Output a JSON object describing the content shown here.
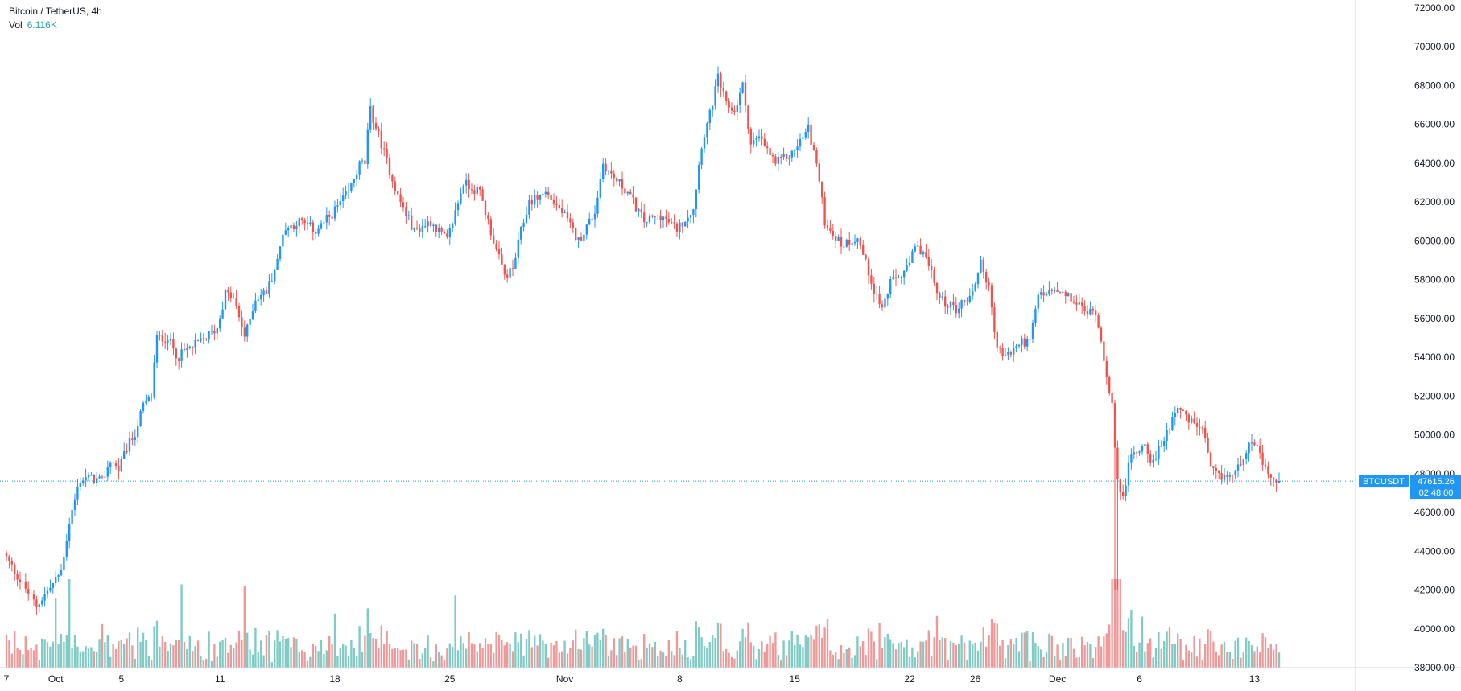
{
  "header": {
    "symbol_title": "Bitcoin / TetherUS, 4h",
    "vol_label": "Vol",
    "vol_value": "6.116K"
  },
  "price_tag": {
    "symbol": "BTCUSDT",
    "price": "47615.26",
    "countdown": "02:48:00"
  },
  "colors": {
    "up": "#2196f3",
    "down": "#ef5350",
    "vol_up": "#80cbc4",
    "vol_down": "#ef9a9a",
    "tag_bg": "#2196f3"
  },
  "chart_data": {
    "type": "candlestick",
    "title": "Bitcoin / TetherUS, 4h",
    "timeframe": "4h",
    "ylim": [
      38000,
      72000
    ],
    "y_ticks": [
      "38000.00",
      "40000.00",
      "42000.00",
      "44000.00",
      "46000.00",
      "48000.00",
      "50000.00",
      "52000.00",
      "54000.00",
      "56000.00",
      "58000.00",
      "60000.00",
      "62000.00",
      "64000.00",
      "66000.00",
      "68000.00",
      "70000.00",
      "72000.00"
    ],
    "x_ticks": [
      {
        "label": "7",
        "day": 0
      },
      {
        "label": "Oct",
        "day": 3
      },
      {
        "label": "5",
        "day": 7
      },
      {
        "label": "11",
        "day": 13
      },
      {
        "label": "18",
        "day": 20
      },
      {
        "label": "25",
        "day": 27
      },
      {
        "label": "Nov",
        "day": 34
      },
      {
        "label": "8",
        "day": 41
      },
      {
        "label": "15",
        "day": 48
      },
      {
        "label": "22",
        "day": 55
      },
      {
        "label": "26",
        "day": 59
      },
      {
        "label": "Dec",
        "day": 64
      },
      {
        "label": "6",
        "day": 69
      },
      {
        "label": "13",
        "day": 76
      }
    ],
    "last_price": 47615.26,
    "price_path": [
      [
        0,
        43900
      ],
      [
        1,
        42500
      ],
      [
        2,
        41200
      ],
      [
        3,
        42300
      ],
      [
        3.5,
        43000
      ],
      [
        4,
        45500
      ],
      [
        4.6,
        47600
      ],
      [
        5,
        47800
      ],
      [
        6,
        47600
      ],
      [
        6.5,
        48700
      ],
      [
        7,
        48200
      ],
      [
        7.5,
        49300
      ],
      [
        8,
        50100
      ],
      [
        8.5,
        51500
      ],
      [
        9,
        52000
      ],
      [
        9.3,
        55000
      ],
      [
        10,
        55000
      ],
      [
        10.6,
        54000
      ],
      [
        11,
        54300
      ],
      [
        12,
        54800
      ],
      [
        13,
        55500
      ],
      [
        13.5,
        57300
      ],
      [
        14,
        57000
      ],
      [
        14.7,
        55000
      ],
      [
        15.3,
        57000
      ],
      [
        16,
        57400
      ],
      [
        16.7,
        59000
      ],
      [
        17,
        60500
      ],
      [
        18,
        61000
      ],
      [
        18.5,
        60800
      ],
      [
        19,
        60500
      ],
      [
        20,
        61400
      ],
      [
        21,
        62500
      ],
      [
        21.7,
        64000
      ],
      [
        22,
        64000
      ],
      [
        22.3,
        66800
      ],
      [
        23,
        65000
      ],
      [
        24,
        62300
      ],
      [
        25,
        60500
      ],
      [
        26,
        61000
      ],
      [
        27,
        60000
      ],
      [
        28,
        63000
      ],
      [
        29,
        62500
      ],
      [
        30,
        59500
      ],
      [
        30.5,
        58200
      ],
      [
        31,
        58500
      ],
      [
        31.5,
        60500
      ],
      [
        32,
        62000
      ],
      [
        33,
        62500
      ],
      [
        34,
        61500
      ],
      [
        35,
        60000
      ],
      [
        36,
        61500
      ],
      [
        36.5,
        64000
      ],
      [
        37,
        63400
      ],
      [
        38,
        62500
      ],
      [
        39,
        61000
      ],
      [
        40,
        61300
      ],
      [
        41,
        60600
      ],
      [
        42,
        61700
      ],
      [
        42.5,
        65000
      ],
      [
        43,
        66500
      ],
      [
        43.5,
        68400
      ],
      [
        44,
        67000
      ],
      [
        44.5,
        66700
      ],
      [
        45,
        68000
      ],
      [
        45.5,
        65000
      ],
      [
        46,
        65300
      ],
      [
        47,
        64000
      ],
      [
        48,
        64500
      ],
      [
        49,
        65800
      ],
      [
        49.5,
        64000
      ],
      [
        50,
        61000
      ],
      [
        51,
        59800
      ],
      [
        52,
        60200
      ],
      [
        53,
        57500
      ],
      [
        53.5,
        56500
      ],
      [
        54,
        57800
      ],
      [
        55,
        58500
      ],
      [
        55.5,
        59600
      ],
      [
        56,
        59500
      ],
      [
        57,
        57000
      ],
      [
        58,
        56500
      ],
      [
        59,
        57300
      ],
      [
        59.5,
        59000
      ],
      [
        60,
        57500
      ],
      [
        60.5,
        54500
      ],
      [
        61,
        54000
      ],
      [
        62,
        54800
      ],
      [
        62.5,
        54800
      ],
      [
        63,
        57200
      ],
      [
        64,
        57400
      ],
      [
        65,
        57000
      ],
      [
        66,
        56300
      ],
      [
        66.5,
        56400
      ],
      [
        67,
        54000
      ],
      [
        67.5,
        51500
      ],
      [
        67.8,
        47500
      ],
      [
        68.2,
        47000
      ],
      [
        68.6,
        48800
      ],
      [
        69,
        49200
      ],
      [
        69.5,
        49500
      ],
      [
        70,
        48500
      ],
      [
        71,
        50500
      ],
      [
        71.5,
        51600
      ],
      [
        72,
        50800
      ],
      [
        73,
        50300
      ],
      [
        73.5,
        48200
      ],
      [
        74,
        47800
      ],
      [
        75,
        48000
      ],
      [
        75.5,
        49000
      ],
      [
        76,
        49800
      ],
      [
        76.5,
        48900
      ],
      [
        77,
        47800
      ],
      [
        77.5,
        47615
      ]
    ],
    "volume_max": 5000
  }
}
